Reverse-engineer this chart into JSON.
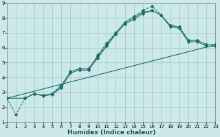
{
  "xlabel": "Humidex (Indice chaleur)",
  "xlim": [
    0,
    23
  ],
  "ylim": [
    1,
    9
  ],
  "xticks": [
    0,
    1,
    2,
    3,
    4,
    5,
    6,
    7,
    8,
    9,
    10,
    11,
    12,
    13,
    14,
    15,
    16,
    17,
    18,
    19,
    20,
    21,
    22,
    23
  ],
  "yticks": [
    1,
    2,
    3,
    4,
    5,
    6,
    7,
    8,
    9
  ],
  "bg_color": "#cce8e8",
  "grid_color": "#aacfcf",
  "line_color": "#1a6b6b",
  "line1_x": [
    0,
    1,
    2,
    3,
    4,
    5,
    6,
    7,
    8,
    9,
    10,
    11,
    12,
    13,
    14,
    15,
    16,
    17,
    18,
    19,
    20,
    21,
    22,
    23
  ],
  "line1_y": [
    2.6,
    1.5,
    2.6,
    2.9,
    2.8,
    2.9,
    3.5,
    4.3,
    4.5,
    4.5,
    5.5,
    6.3,
    7.0,
    7.7,
    8.1,
    8.5,
    8.8,
    8.2,
    7.5,
    7.4,
    6.5,
    6.5,
    6.2,
    6.2
  ],
  "line2_x": [
    0,
    2,
    3,
    4,
    5,
    6,
    7,
    8,
    9,
    10,
    11,
    12,
    13,
    14,
    15,
    16,
    17,
    18,
    19,
    20,
    21,
    22,
    23
  ],
  "line2_y": [
    2.6,
    2.6,
    2.9,
    2.8,
    2.9,
    3.4,
    4.4,
    4.6,
    4.6,
    5.4,
    6.2,
    7.0,
    7.7,
    8.0,
    8.4,
    8.5,
    8.2,
    7.5,
    7.4,
    6.5,
    6.5,
    6.2,
    6.2
  ],
  "line3_x": [
    0,
    23
  ],
  "line3_y": [
    2.6,
    6.2
  ],
  "line4_x": [
    0,
    2,
    3,
    4,
    5,
    6,
    7,
    8,
    9,
    10,
    11,
    12,
    13,
    14,
    15,
    16,
    17,
    18,
    19,
    20,
    21,
    22,
    23
  ],
  "line4_y": [
    2.6,
    2.6,
    2.9,
    2.75,
    2.85,
    3.3,
    4.3,
    4.5,
    4.5,
    5.3,
    6.1,
    6.9,
    7.6,
    7.9,
    8.3,
    8.5,
    8.2,
    7.4,
    7.3,
    6.4,
    6.4,
    6.1,
    6.1
  ]
}
